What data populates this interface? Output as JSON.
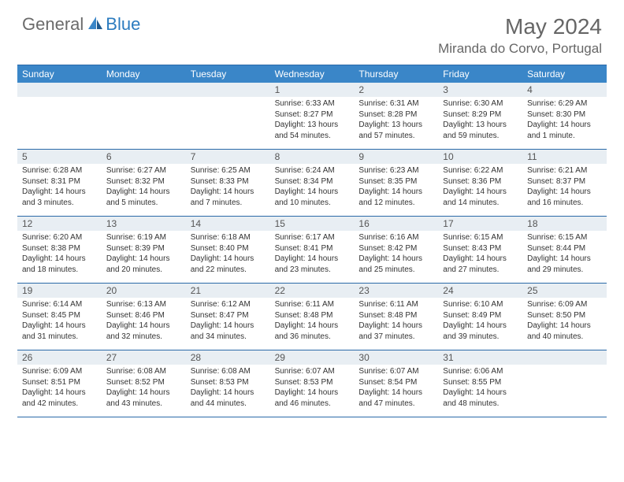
{
  "logo": {
    "general": "General",
    "blue": "Blue"
  },
  "title": {
    "monthYear": "May 2024",
    "location": "Miranda do Corvo, Portugal"
  },
  "colors": {
    "headerBar": "#3a86c8",
    "borderLine": "#2b6aa8",
    "dayNumBg": "#e8eef3",
    "logoBlue": "#2b7bbf",
    "textGray": "#666666"
  },
  "weekdays": [
    "Sunday",
    "Monday",
    "Tuesday",
    "Wednesday",
    "Thursday",
    "Friday",
    "Saturday"
  ],
  "weeks": [
    [
      {
        "num": "",
        "sunrise": "",
        "sunset": "",
        "daylight": ""
      },
      {
        "num": "",
        "sunrise": "",
        "sunset": "",
        "daylight": ""
      },
      {
        "num": "",
        "sunrise": "",
        "sunset": "",
        "daylight": ""
      },
      {
        "num": "1",
        "sunrise": "Sunrise: 6:33 AM",
        "sunset": "Sunset: 8:27 PM",
        "daylight": "Daylight: 13 hours and 54 minutes."
      },
      {
        "num": "2",
        "sunrise": "Sunrise: 6:31 AM",
        "sunset": "Sunset: 8:28 PM",
        "daylight": "Daylight: 13 hours and 57 minutes."
      },
      {
        "num": "3",
        "sunrise": "Sunrise: 6:30 AM",
        "sunset": "Sunset: 8:29 PM",
        "daylight": "Daylight: 13 hours and 59 minutes."
      },
      {
        "num": "4",
        "sunrise": "Sunrise: 6:29 AM",
        "sunset": "Sunset: 8:30 PM",
        "daylight": "Daylight: 14 hours and 1 minute."
      }
    ],
    [
      {
        "num": "5",
        "sunrise": "Sunrise: 6:28 AM",
        "sunset": "Sunset: 8:31 PM",
        "daylight": "Daylight: 14 hours and 3 minutes."
      },
      {
        "num": "6",
        "sunrise": "Sunrise: 6:27 AM",
        "sunset": "Sunset: 8:32 PM",
        "daylight": "Daylight: 14 hours and 5 minutes."
      },
      {
        "num": "7",
        "sunrise": "Sunrise: 6:25 AM",
        "sunset": "Sunset: 8:33 PM",
        "daylight": "Daylight: 14 hours and 7 minutes."
      },
      {
        "num": "8",
        "sunrise": "Sunrise: 6:24 AM",
        "sunset": "Sunset: 8:34 PM",
        "daylight": "Daylight: 14 hours and 10 minutes."
      },
      {
        "num": "9",
        "sunrise": "Sunrise: 6:23 AM",
        "sunset": "Sunset: 8:35 PM",
        "daylight": "Daylight: 14 hours and 12 minutes."
      },
      {
        "num": "10",
        "sunrise": "Sunrise: 6:22 AM",
        "sunset": "Sunset: 8:36 PM",
        "daylight": "Daylight: 14 hours and 14 minutes."
      },
      {
        "num": "11",
        "sunrise": "Sunrise: 6:21 AM",
        "sunset": "Sunset: 8:37 PM",
        "daylight": "Daylight: 14 hours and 16 minutes."
      }
    ],
    [
      {
        "num": "12",
        "sunrise": "Sunrise: 6:20 AM",
        "sunset": "Sunset: 8:38 PM",
        "daylight": "Daylight: 14 hours and 18 minutes."
      },
      {
        "num": "13",
        "sunrise": "Sunrise: 6:19 AM",
        "sunset": "Sunset: 8:39 PM",
        "daylight": "Daylight: 14 hours and 20 minutes."
      },
      {
        "num": "14",
        "sunrise": "Sunrise: 6:18 AM",
        "sunset": "Sunset: 8:40 PM",
        "daylight": "Daylight: 14 hours and 22 minutes."
      },
      {
        "num": "15",
        "sunrise": "Sunrise: 6:17 AM",
        "sunset": "Sunset: 8:41 PM",
        "daylight": "Daylight: 14 hours and 23 minutes."
      },
      {
        "num": "16",
        "sunrise": "Sunrise: 6:16 AM",
        "sunset": "Sunset: 8:42 PM",
        "daylight": "Daylight: 14 hours and 25 minutes."
      },
      {
        "num": "17",
        "sunrise": "Sunrise: 6:15 AM",
        "sunset": "Sunset: 8:43 PM",
        "daylight": "Daylight: 14 hours and 27 minutes."
      },
      {
        "num": "18",
        "sunrise": "Sunrise: 6:15 AM",
        "sunset": "Sunset: 8:44 PM",
        "daylight": "Daylight: 14 hours and 29 minutes."
      }
    ],
    [
      {
        "num": "19",
        "sunrise": "Sunrise: 6:14 AM",
        "sunset": "Sunset: 8:45 PM",
        "daylight": "Daylight: 14 hours and 31 minutes."
      },
      {
        "num": "20",
        "sunrise": "Sunrise: 6:13 AM",
        "sunset": "Sunset: 8:46 PM",
        "daylight": "Daylight: 14 hours and 32 minutes."
      },
      {
        "num": "21",
        "sunrise": "Sunrise: 6:12 AM",
        "sunset": "Sunset: 8:47 PM",
        "daylight": "Daylight: 14 hours and 34 minutes."
      },
      {
        "num": "22",
        "sunrise": "Sunrise: 6:11 AM",
        "sunset": "Sunset: 8:48 PM",
        "daylight": "Daylight: 14 hours and 36 minutes."
      },
      {
        "num": "23",
        "sunrise": "Sunrise: 6:11 AM",
        "sunset": "Sunset: 8:48 PM",
        "daylight": "Daylight: 14 hours and 37 minutes."
      },
      {
        "num": "24",
        "sunrise": "Sunrise: 6:10 AM",
        "sunset": "Sunset: 8:49 PM",
        "daylight": "Daylight: 14 hours and 39 minutes."
      },
      {
        "num": "25",
        "sunrise": "Sunrise: 6:09 AM",
        "sunset": "Sunset: 8:50 PM",
        "daylight": "Daylight: 14 hours and 40 minutes."
      }
    ],
    [
      {
        "num": "26",
        "sunrise": "Sunrise: 6:09 AM",
        "sunset": "Sunset: 8:51 PM",
        "daylight": "Daylight: 14 hours and 42 minutes."
      },
      {
        "num": "27",
        "sunrise": "Sunrise: 6:08 AM",
        "sunset": "Sunset: 8:52 PM",
        "daylight": "Daylight: 14 hours and 43 minutes."
      },
      {
        "num": "28",
        "sunrise": "Sunrise: 6:08 AM",
        "sunset": "Sunset: 8:53 PM",
        "daylight": "Daylight: 14 hours and 44 minutes."
      },
      {
        "num": "29",
        "sunrise": "Sunrise: 6:07 AM",
        "sunset": "Sunset: 8:53 PM",
        "daylight": "Daylight: 14 hours and 46 minutes."
      },
      {
        "num": "30",
        "sunrise": "Sunrise: 6:07 AM",
        "sunset": "Sunset: 8:54 PM",
        "daylight": "Daylight: 14 hours and 47 minutes."
      },
      {
        "num": "31",
        "sunrise": "Sunrise: 6:06 AM",
        "sunset": "Sunset: 8:55 PM",
        "daylight": "Daylight: 14 hours and 48 minutes."
      },
      {
        "num": "",
        "sunrise": "",
        "sunset": "",
        "daylight": ""
      }
    ]
  ]
}
